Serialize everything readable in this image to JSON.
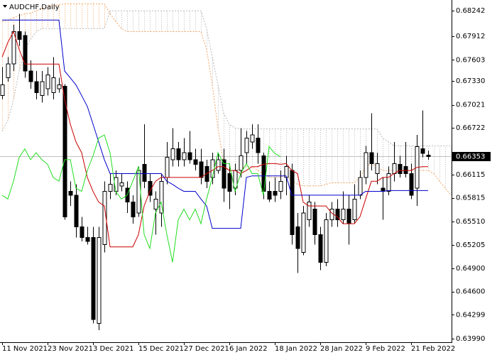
{
  "chart_data": {
    "type": "candlestick",
    "title": "AUDCHF,Daily",
    "categories": [
      "11 Nov 2021",
      null,
      null,
      null,
      null,
      null,
      null,
      null,
      "23 Nov 2021",
      null,
      null,
      null,
      null,
      null,
      null,
      null,
      "3 Dec 2021",
      null,
      null,
      null,
      null,
      null,
      null,
      null,
      "15 Dec 2021",
      null,
      null,
      null,
      null,
      null,
      null,
      null,
      "27 Dec 2021",
      null,
      null,
      null,
      null,
      null,
      null,
      null,
      "6 Jan 2022",
      null,
      null,
      null,
      null,
      null,
      null,
      null,
      "18 Jan 2022",
      null,
      null,
      null,
      null,
      null,
      null,
      null,
      "28 Jan 2022",
      null,
      null,
      null,
      null,
      null,
      null,
      null,
      "9 Feb 2022",
      null,
      null,
      null,
      null,
      null,
      null,
      null,
      "21 Feb 2022",
      null,
      null,
      null,
      null,
      null,
      null,
      null
    ],
    "open": [
      0.6714,
      0.6737,
      0.6755,
      0.6797,
      0.6792,
      0.6746,
      0.6732,
      0.6714,
      0.6723,
      0.6718,
      0.6723,
      0.6726,
      0.659,
      0.6585,
      0.6544,
      0.653,
      0.653,
      0.6419,
      0.6521,
      0.659,
      0.659,
      0.6597,
      0.6594,
      0.6576,
      0.6562,
      0.6625,
      0.6603,
      0.6567,
      0.6562,
      0.6608,
      0.6631,
      0.6645,
      0.6631,
      0.664,
      0.6631,
      0.6628,
      0.6622,
      0.6608,
      0.6617,
      0.6631,
      0.6613,
      0.6594,
      0.6617,
      0.664,
      0.6654,
      0.6659,
      0.6636,
      0.659,
      0.659,
      0.659,
      0.6608,
      0.6617,
      0.6544,
      0.6511,
      0.6553,
      0.6567,
      0.6534,
      0.6498,
      0.6553,
      0.6567,
      0.6553,
      0.6567,
      0.6553,
      0.6585,
      0.6608,
      0.664,
      0.6613,
      0.6594,
      0.659,
      0.6613,
      0.6625,
      0.6622,
      0.6613,
      0.6594,
      0.6645,
      0.6637,
      null,
      null,
      null,
      null
    ],
    "high": [
      0.6751,
      0.6764,
      0.6806,
      0.682,
      0.6797,
      0.676,
      0.6746,
      0.6746,
      0.6751,
      0.6764,
      0.6737,
      0.6729,
      0.6603,
      0.6599,
      0.6557,
      0.6544,
      0.6544,
      0.6544,
      0.6603,
      0.6613,
      0.6617,
      0.6613,
      0.6603,
      0.6585,
      0.6622,
      0.6677,
      0.6613,
      0.659,
      0.6613,
      0.6654,
      0.6672,
      0.6654,
      0.6659,
      0.6668,
      0.6645,
      0.6645,
      0.6631,
      0.664,
      0.664,
      0.6645,
      0.6626,
      0.6626,
      0.6672,
      0.6668,
      0.6677,
      0.6677,
      0.664,
      0.6603,
      0.6608,
      0.6617,
      0.6636,
      0.6626,
      0.6562,
      0.6571,
      0.6585,
      0.6576,
      0.6544,
      0.6562,
      0.6576,
      0.658,
      0.659,
      0.6585,
      0.6599,
      0.6617,
      0.6649,
      0.6691,
      0.664,
      0.6608,
      0.6622,
      0.6654,
      0.6636,
      0.6654,
      0.6626,
      0.6663,
      0.6695,
      0.6643,
      null,
      null,
      null,
      null
    ],
    "low": [
      0.6709,
      0.6732,
      0.6746,
      0.6778,
      0.6737,
      0.6723,
      0.6709,
      0.6705,
      0.6714,
      0.6709,
      0.6718,
      0.6553,
      0.6571,
      0.653,
      0.6525,
      0.6521,
      0.6419,
      0.641,
      0.6511,
      0.658,
      0.6585,
      0.659,
      0.6562,
      0.6548,
      0.6557,
      0.6594,
      0.6576,
      0.6534,
      0.6544,
      0.6599,
      0.6622,
      0.6622,
      0.6622,
      0.6626,
      0.6617,
      0.6599,
      0.6594,
      0.6599,
      0.6613,
      0.6576,
      0.6567,
      0.6585,
      0.6608,
      0.6626,
      0.6645,
      0.6626,
      0.658,
      0.6576,
      0.6576,
      0.658,
      0.6585,
      0.6521,
      0.6484,
      0.6507,
      0.6544,
      0.6521,
      0.6488,
      0.6493,
      0.6544,
      0.6544,
      0.6548,
      0.6521,
      0.6548,
      0.658,
      0.6599,
      0.6617,
      0.6599,
      0.6553,
      0.6585,
      0.6603,
      0.6608,
      0.6608,
      0.658,
      0.6571,
      0.6634,
      0.6631,
      null,
      null,
      null,
      null
    ],
    "close": [
      0.6728,
      0.6755,
      0.6797,
      0.6787,
      0.6746,
      0.6732,
      0.6718,
      0.6732,
      0.6741,
      0.6737,
      0.6728,
      0.6557,
      0.6585,
      0.6544,
      0.653,
      0.6525,
      0.6424,
      0.653,
      0.659,
      0.6599,
      0.6608,
      0.6601,
      0.6576,
      0.6557,
      0.6617,
      0.6603,
      0.6585,
      0.658,
      0.6603,
      0.6634,
      0.6645,
      0.6631,
      0.664,
      0.6631,
      0.6625,
      0.6608,
      0.6603,
      0.6631,
      0.6631,
      0.6594,
      0.659,
      0.6617,
      0.6636,
      0.6659,
      0.6663,
      0.664,
      0.659,
      0.658,
      0.6585,
      0.6603,
      0.6622,
      0.6534,
      0.6516,
      0.6562,
      0.6576,
      0.6534,
      0.6498,
      0.6553,
      0.6567,
      0.6553,
      0.6567,
      0.6548,
      0.658,
      0.6608,
      0.664,
      0.6626,
      0.6626,
      0.659,
      0.6613,
      0.6626,
      0.6613,
      0.6613,
      0.6585,
      0.6648,
      0.6639,
      0.6635,
      null,
      null,
      null,
      null
    ],
    "candle_color": "#000000",
    "up_fill": "#ffffff",
    "lines": [
      {
        "color": "#cc0000",
        "values": [
          0.6764,
          0.6783,
          0.6797,
          0.6774,
          0.6755,
          0.6755,
          0.6755,
          0.6755,
          0.6755,
          0.6755,
          0.6755,
          0.6709,
          0.6677,
          0.6654,
          0.664,
          0.6608,
          0.659,
          0.6576,
          0.6571,
          0.6518,
          0.6518,
          0.6518,
          0.6518,
          0.6518,
          0.6534,
          0.6571,
          0.659,
          0.6603,
          0.6608,
          0.6608,
          0.6608,
          0.6608,
          0.6608,
          0.6608,
          0.6608,
          0.6608,
          0.6613,
          0.6617,
          0.6622,
          0.6622,
          0.6617,
          0.6617,
          0.6613,
          0.6617,
          0.6622,
          0.6622,
          0.6625,
          0.6626,
          0.6626,
          0.6625,
          0.6626,
          0.6617,
          0.6613,
          0.6576,
          0.6571,
          0.6571,
          0.6571,
          0.6571,
          0.6562,
          0.6557,
          0.6548,
          0.6548,
          0.6548,
          0.6557,
          0.658,
          0.6603,
          0.6603,
          0.6608,
          0.6608,
          0.6613,
          0.6617,
          0.6617,
          0.6617,
          0.6621,
          0.6622,
          0.6622,
          null,
          null,
          null,
          null
        ]
      },
      {
        "color": "#0000cc",
        "values": [
          0.6812,
          0.6812,
          0.6812,
          0.6812,
          0.6812,
          0.6812,
          0.6812,
          0.6812,
          0.6812,
          0.6812,
          0.6812,
          0.6746,
          0.6737,
          0.6728,
          0.6714,
          0.67,
          0.6677,
          0.6654,
          0.6631,
          0.6613,
          0.6613,
          0.6613,
          0.6613,
          0.6613,
          0.6613,
          0.6613,
          0.6613,
          0.6613,
          0.6613,
          0.6603,
          0.6599,
          0.6594,
          0.659,
          0.659,
          0.659,
          0.658,
          0.6571,
          0.6542,
          0.6542,
          0.6542,
          0.6542,
          0.6542,
          0.6542,
          0.6608,
          0.661,
          0.661,
          0.661,
          0.661,
          0.661,
          0.661,
          0.661,
          0.6585,
          0.6585,
          0.6585,
          0.6585,
          0.6585,
          0.6585,
          0.6585,
          0.6585,
          0.6585,
          0.6585,
          0.6585,
          0.6585,
          0.6585,
          0.659,
          0.659,
          0.659,
          0.659,
          0.6591,
          0.6591,
          0.6591,
          0.6591,
          0.6591,
          0.6591,
          0.6591,
          0.6591,
          null,
          null,
          null,
          null
        ]
      },
      {
        "color": "#22dd22",
        "values": [
          0.6585,
          0.658,
          0.6603,
          0.6634,
          0.6645,
          0.6631,
          0.664,
          0.6631,
          0.6625,
          0.6608,
          0.6603,
          0.6631,
          0.6631,
          0.6594,
          0.659,
          0.6617,
          0.6636,
          0.6659,
          0.6663,
          0.664,
          0.659,
          0.658,
          0.6585,
          0.6603,
          0.6622,
          0.6534,
          0.6516,
          0.6562,
          0.6576,
          0.6534,
          0.6498,
          0.6553,
          0.6567,
          0.6553,
          0.6567,
          0.6548,
          0.658,
          0.6608,
          0.664,
          0.6626,
          0.6626,
          0.659,
          0.6613,
          0.6626,
          0.6613,
          0.6613,
          0.6585,
          0.6648,
          0.6639,
          0.6635,
          null,
          null,
          null,
          null,
          null,
          null,
          null,
          null,
          null,
          null,
          null,
          null,
          null,
          null,
          null,
          null,
          null,
          null,
          null,
          null,
          null,
          null,
          null,
          null,
          null,
          null,
          null,
          null,
          null,
          null
        ]
      }
    ],
    "cloud": {
      "span_a": {
        "color": "#f4a460",
        "values": [
          0.681,
          0.6812,
          0.6815,
          0.6818,
          0.682,
          0.6821,
          0.6824,
          0.6827,
          0.6829,
          0.6831,
          0.6832,
          0.6833,
          0.6833,
          0.6833,
          0.6833,
          0.6833,
          0.6833,
          0.6833,
          0.6833,
          0.682,
          0.681,
          0.6801,
          0.6797,
          0.6797,
          0.6797,
          0.6797,
          0.6797,
          0.6797,
          0.6797,
          0.6797,
          0.6797,
          0.6797,
          0.6797,
          0.6797,
          0.6797,
          0.6797,
          0.6774,
          0.6728,
          0.6672,
          0.6626,
          0.6617,
          0.6617,
          0.6619,
          0.6622,
          0.6622,
          0.6617,
          0.6613,
          0.6608,
          0.6608,
          0.6608,
          0.6613,
          0.6603,
          0.6599,
          0.6597,
          0.6597,
          0.6597,
          0.6597,
          0.6599,
          0.6601,
          0.6601,
          0.6601,
          0.6601,
          0.6601,
          0.6608,
          0.6622,
          0.6626,
          0.6622,
          0.6617,
          0.6617,
          0.6617,
          0.6617,
          0.6617,
          0.6617,
          0.6617,
          0.6617,
          0.6617,
          0.6613,
          0.6603,
          0.6594,
          0.6585
        ]
      },
      "span_b": {
        "color": "#b8b8b8",
        "values": [
          0.6668,
          0.6682,
          0.6709,
          0.6746,
          0.6774,
          0.6787,
          0.6797,
          0.6801,
          0.6801,
          0.6801,
          0.6801,
          0.6801,
          0.6801,
          0.6801,
          0.6801,
          0.6801,
          0.6801,
          0.6801,
          0.6801,
          0.6824,
          0.6824,
          0.6824,
          0.6824,
          0.6824,
          0.6824,
          0.6824,
          0.6824,
          0.6824,
          0.6824,
          0.6824,
          0.6824,
          0.6824,
          0.6824,
          0.6824,
          0.6824,
          0.6824,
          0.6801,
          0.6764,
          0.6728,
          0.6691,
          0.6677,
          0.6672,
          0.6671,
          0.6671,
          0.6671,
          0.6671,
          0.6671,
          0.6671,
          0.6671,
          0.6671,
          0.6671,
          0.6671,
          0.6671,
          0.6671,
          0.6671,
          0.6671,
          0.6671,
          0.6671,
          0.6671,
          0.6671,
          0.6671,
          0.6671,
          0.6671,
          0.6671,
          0.6671,
          0.6671,
          0.6671,
          0.6659,
          0.6654,
          0.6649,
          0.6649,
          0.6649,
          0.6649,
          0.6649,
          0.6649,
          0.6649,
          0.6649,
          0.6649,
          0.6649,
          0.6649
        ]
      }
    },
    "last_price": 0.66353,
    "last_price_color": "#c0c0c0",
    "ylim": [
      0.63944,
      0.6838
    ],
    "yticks": [
      0.68242,
      0.67912,
      0.67603,
      {
        "value": 0.6733,
        "label": "0.67330"
      },
      0.67021,
      0.66722,
      0.66115,
      0.65815,
      {
        "value": 0.6551,
        "label": "0.65510"
      },
      0.65205,
      {
        "value": 0.649,
        "label": "0.64900"
      },
      {
        "value": 0.646,
        "label": "0.64600"
      },
      0.64299,
      {
        "value": 0.6399,
        "label": "0.63990"
      }
    ]
  }
}
